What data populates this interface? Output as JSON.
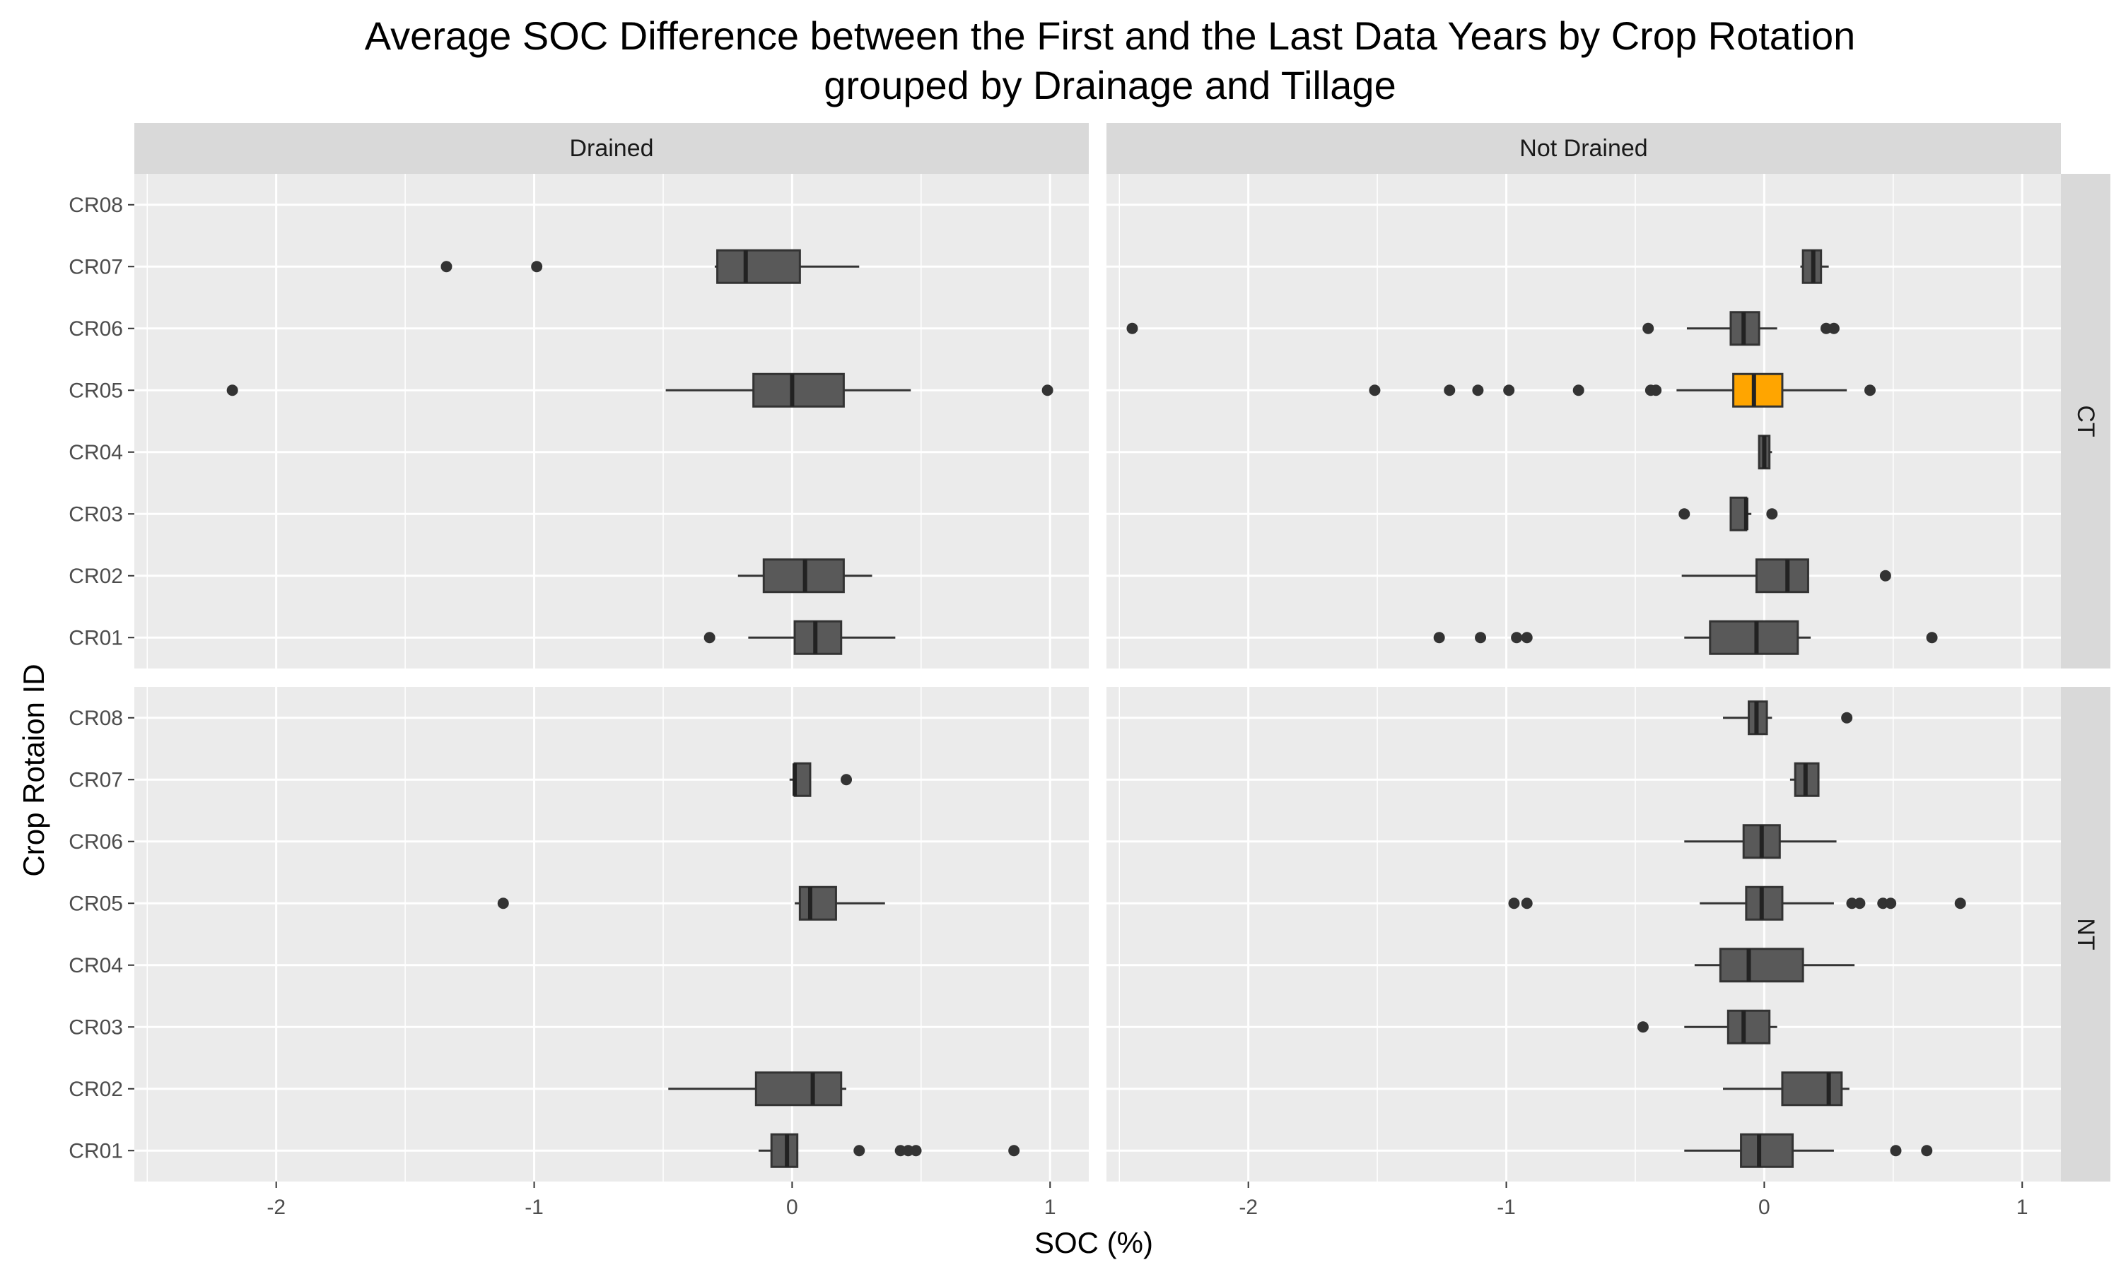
{
  "chart_data": {
    "type": "boxplot",
    "title": [
      "Average SOC Difference between the First and the Last Data Years by Crop Rotation",
      "grouped by Drainage and Tillage"
    ],
    "xlabel": "SOC (%)",
    "ylabel": "Crop Rotaion ID",
    "xlim": [
      -2.55,
      1.15
    ],
    "x_ticks": [
      -2,
      -1,
      0,
      1
    ],
    "categories": [
      "CR01",
      "CR02",
      "CR03",
      "CR04",
      "CR05",
      "CR06",
      "CR07",
      "CR08"
    ],
    "column_facets": [
      "Drained",
      "Not Drained"
    ],
    "row_facets": [
      "CT",
      "NT"
    ],
    "colors": {
      "panel_bg": "#ebebeb",
      "grid": "#ffffff",
      "strip_bg": "#d9d9d9",
      "box_fill": "#595959",
      "highlight_fill": "#ffa500",
      "outline": "#333333"
    },
    "panels": [
      {
        "col": "Drained",
        "row": "CT",
        "boxes": [
          {
            "category": "CR01",
            "wlo": -0.17,
            "q1": 0.01,
            "median": 0.09,
            "q3": 0.19,
            "whi": 0.4,
            "outliers": [
              -0.32
            ]
          },
          {
            "category": "CR02",
            "wlo": -0.21,
            "q1": -0.11,
            "median": 0.05,
            "q3": 0.2,
            "whi": 0.31,
            "outliers": []
          },
          {
            "category": "CR05",
            "wlo": -0.49,
            "q1": -0.15,
            "median": 0.0,
            "q3": 0.2,
            "whi": 0.46,
            "outliers": [
              -2.17,
              0.99
            ]
          },
          {
            "category": "CR07",
            "wlo": -0.3,
            "q1": -0.29,
            "median": -0.18,
            "q3": 0.03,
            "whi": 0.26,
            "outliers": [
              -1.34,
              -0.99
            ]
          }
        ]
      },
      {
        "col": "Not Drained",
        "row": "CT",
        "boxes": [
          {
            "category": "CR01",
            "wlo": -0.31,
            "q1": -0.21,
            "median": -0.03,
            "q3": 0.13,
            "whi": 0.18,
            "outliers": [
              -1.26,
              -1.1,
              -0.96,
              -0.92,
              0.65
            ]
          },
          {
            "category": "CR02",
            "wlo": -0.32,
            "q1": -0.03,
            "median": 0.09,
            "q3": 0.17,
            "whi": 0.17,
            "outliers": [
              0.47
            ]
          },
          {
            "category": "CR03",
            "wlo": -0.13,
            "q1": -0.13,
            "median": -0.07,
            "q3": -0.07,
            "whi": -0.05,
            "outliers": [
              -0.31,
              0.03
            ]
          },
          {
            "category": "CR04",
            "wlo": -0.02,
            "q1": -0.02,
            "median": 0.0,
            "q3": 0.02,
            "whi": 0.03,
            "outliers": []
          },
          {
            "category": "CR05",
            "wlo": -0.34,
            "q1": -0.12,
            "median": -0.04,
            "q3": 0.07,
            "whi": 0.32,
            "outliers": [
              -1.51,
              -1.22,
              -1.11,
              -0.99,
              -0.72,
              -0.44,
              -0.42,
              0.41
            ],
            "highlight": true
          },
          {
            "category": "CR06",
            "wlo": -0.3,
            "q1": -0.13,
            "median": -0.08,
            "q3": -0.02,
            "whi": 0.05,
            "outliers": [
              -2.45,
              -0.45,
              0.24,
              0.27
            ]
          },
          {
            "category": "CR07",
            "wlo": 0.14,
            "q1": 0.15,
            "median": 0.19,
            "q3": 0.22,
            "whi": 0.25,
            "outliers": []
          }
        ]
      },
      {
        "col": "Drained",
        "row": "NT",
        "boxes": [
          {
            "category": "CR01",
            "wlo": -0.13,
            "q1": -0.08,
            "median": -0.02,
            "q3": 0.02,
            "whi": 0.02,
            "outliers": [
              0.26,
              0.42,
              0.45,
              0.48,
              0.86
            ]
          },
          {
            "category": "CR02",
            "wlo": -0.48,
            "q1": -0.14,
            "median": 0.08,
            "q3": 0.19,
            "whi": 0.21,
            "outliers": []
          },
          {
            "category": "CR05",
            "wlo": 0.01,
            "q1": 0.03,
            "median": 0.07,
            "q3": 0.17,
            "whi": 0.36,
            "outliers": [
              -1.12
            ]
          },
          {
            "category": "CR07",
            "wlo": -0.01,
            "q1": 0.01,
            "median": 0.01,
            "q3": 0.07,
            "whi": 0.07,
            "outliers": [
              0.21
            ]
          }
        ]
      },
      {
        "col": "Not Drained",
        "row": "NT",
        "boxes": [
          {
            "category": "CR01",
            "wlo": -0.31,
            "q1": -0.09,
            "median": -0.02,
            "q3": 0.11,
            "whi": 0.27,
            "outliers": [
              0.51,
              0.63
            ]
          },
          {
            "category": "CR02",
            "wlo": -0.16,
            "q1": 0.07,
            "median": 0.25,
            "q3": 0.3,
            "whi": 0.33,
            "outliers": []
          },
          {
            "category": "CR03",
            "wlo": -0.31,
            "q1": -0.14,
            "median": -0.08,
            "q3": 0.02,
            "whi": 0.05,
            "outliers": [
              -0.47
            ]
          },
          {
            "category": "CR04",
            "wlo": -0.27,
            "q1": -0.17,
            "median": -0.06,
            "q3": 0.15,
            "whi": 0.35,
            "outliers": []
          },
          {
            "category": "CR05",
            "wlo": -0.25,
            "q1": -0.07,
            "median": -0.01,
            "q3": 0.07,
            "whi": 0.27,
            "outliers": [
              -0.97,
              -0.92,
              0.34,
              0.37,
              0.46,
              0.49,
              0.76
            ]
          },
          {
            "category": "CR06",
            "wlo": -0.31,
            "q1": -0.08,
            "median": -0.01,
            "q3": 0.06,
            "whi": 0.28,
            "outliers": []
          },
          {
            "category": "CR07",
            "wlo": 0.1,
            "q1": 0.12,
            "median": 0.16,
            "q3": 0.21,
            "whi": 0.21,
            "outliers": []
          },
          {
            "category": "CR08",
            "wlo": -0.16,
            "q1": -0.06,
            "median": -0.03,
            "q3": 0.01,
            "whi": 0.03,
            "outliers": [
              0.32
            ]
          }
        ]
      }
    ]
  }
}
